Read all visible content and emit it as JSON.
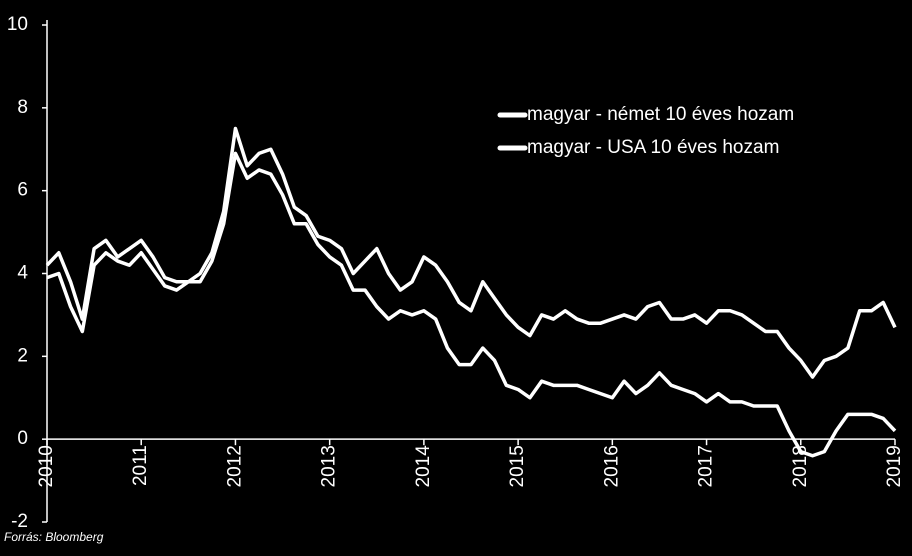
{
  "chart_data": {
    "type": "line",
    "source": "Forrás: Bloomberg",
    "x": [
      2010,
      2010.125,
      2010.25,
      2010.375,
      2010.5,
      2010.625,
      2010.75,
      2010.875,
      2011,
      2011.125,
      2011.25,
      2011.375,
      2011.5,
      2011.625,
      2011.75,
      2011.875,
      2012,
      2012.125,
      2012.25,
      2012.375,
      2012.5,
      2012.625,
      2012.75,
      2012.875,
      2013,
      2013.125,
      2013.25,
      2013.375,
      2013.5,
      2013.625,
      2013.75,
      2013.875,
      2014,
      2014.125,
      2014.25,
      2014.375,
      2014.5,
      2014.625,
      2014.75,
      2014.875,
      2015,
      2015.125,
      2015.25,
      2015.375,
      2015.5,
      2015.625,
      2015.75,
      2015.875,
      2016,
      2016.125,
      2016.25,
      2016.375,
      2016.5,
      2016.625,
      2016.75,
      2016.875,
      2017,
      2017.125,
      2017.25,
      2017.375,
      2017.5,
      2017.625,
      2017.75,
      2017.875,
      2018,
      2018.125,
      2018.25,
      2018.375,
      2018.5,
      2018.625,
      2018.75,
      2018.875,
      2019
    ],
    "series": [
      {
        "name": "magyar - német 10 éves hozam",
        "color": "#ffffff",
        "values": [
          4.2,
          4.5,
          3.8,
          2.9,
          4.6,
          4.8,
          4.4,
          4.6,
          4.8,
          4.4,
          3.9,
          3.8,
          3.8,
          4.0,
          4.5,
          5.5,
          7.5,
          6.6,
          6.9,
          7.0,
          6.4,
          5.6,
          5.4,
          4.9,
          4.8,
          4.6,
          4.0,
          4.3,
          4.6,
          4.0,
          3.6,
          3.8,
          4.4,
          4.2,
          3.8,
          3.3,
          3.1,
          3.8,
          3.4,
          3.0,
          2.7,
          2.5,
          3.0,
          2.9,
          3.1,
          2.9,
          2.8,
          2.8,
          2.9,
          3.0,
          2.9,
          3.2,
          3.3,
          2.9,
          2.9,
          3.0,
          2.8,
          3.1,
          3.1,
          3.0,
          2.8,
          2.6,
          2.6,
          2.2,
          1.9,
          1.5,
          1.9,
          2.0,
          2.2,
          3.1,
          3.1,
          3.3,
          2.7
        ]
      },
      {
        "name": "magyar - USA 10 éves hozam",
        "color": "#ffffff",
        "values": [
          3.9,
          4.0,
          3.2,
          2.6,
          4.2,
          4.5,
          4.3,
          4.2,
          4.5,
          4.1,
          3.7,
          3.6,
          3.8,
          3.8,
          4.3,
          5.2,
          6.9,
          6.3,
          6.5,
          6.4,
          5.9,
          5.2,
          5.2,
          4.7,
          4.4,
          4.2,
          3.6,
          3.6,
          3.2,
          2.9,
          3.1,
          3.0,
          3.1,
          2.9,
          2.2,
          1.8,
          1.8,
          2.2,
          1.9,
          1.3,
          1.2,
          1.0,
          1.4,
          1.3,
          1.3,
          1.3,
          1.2,
          1.1,
          1.0,
          1.4,
          1.1,
          1.3,
          1.6,
          1.3,
          1.2,
          1.1,
          0.9,
          1.1,
          0.9,
          0.9,
          0.8,
          0.8,
          0.8,
          0.2,
          -0.3,
          -0.4,
          -0.3,
          0.2,
          0.6,
          0.6,
          0.6,
          0.5,
          0.2
        ]
      }
    ],
    "xlim": [
      2010,
      2019
    ],
    "xticks": [
      2010,
      2011,
      2012,
      2013,
      2014,
      2015,
      2016,
      2017,
      2018,
      2019
    ],
    "ylim": [
      -2,
      10
    ],
    "yticks": [
      -2,
      0,
      2,
      4,
      6,
      8,
      10
    ],
    "legend": "upper right"
  }
}
